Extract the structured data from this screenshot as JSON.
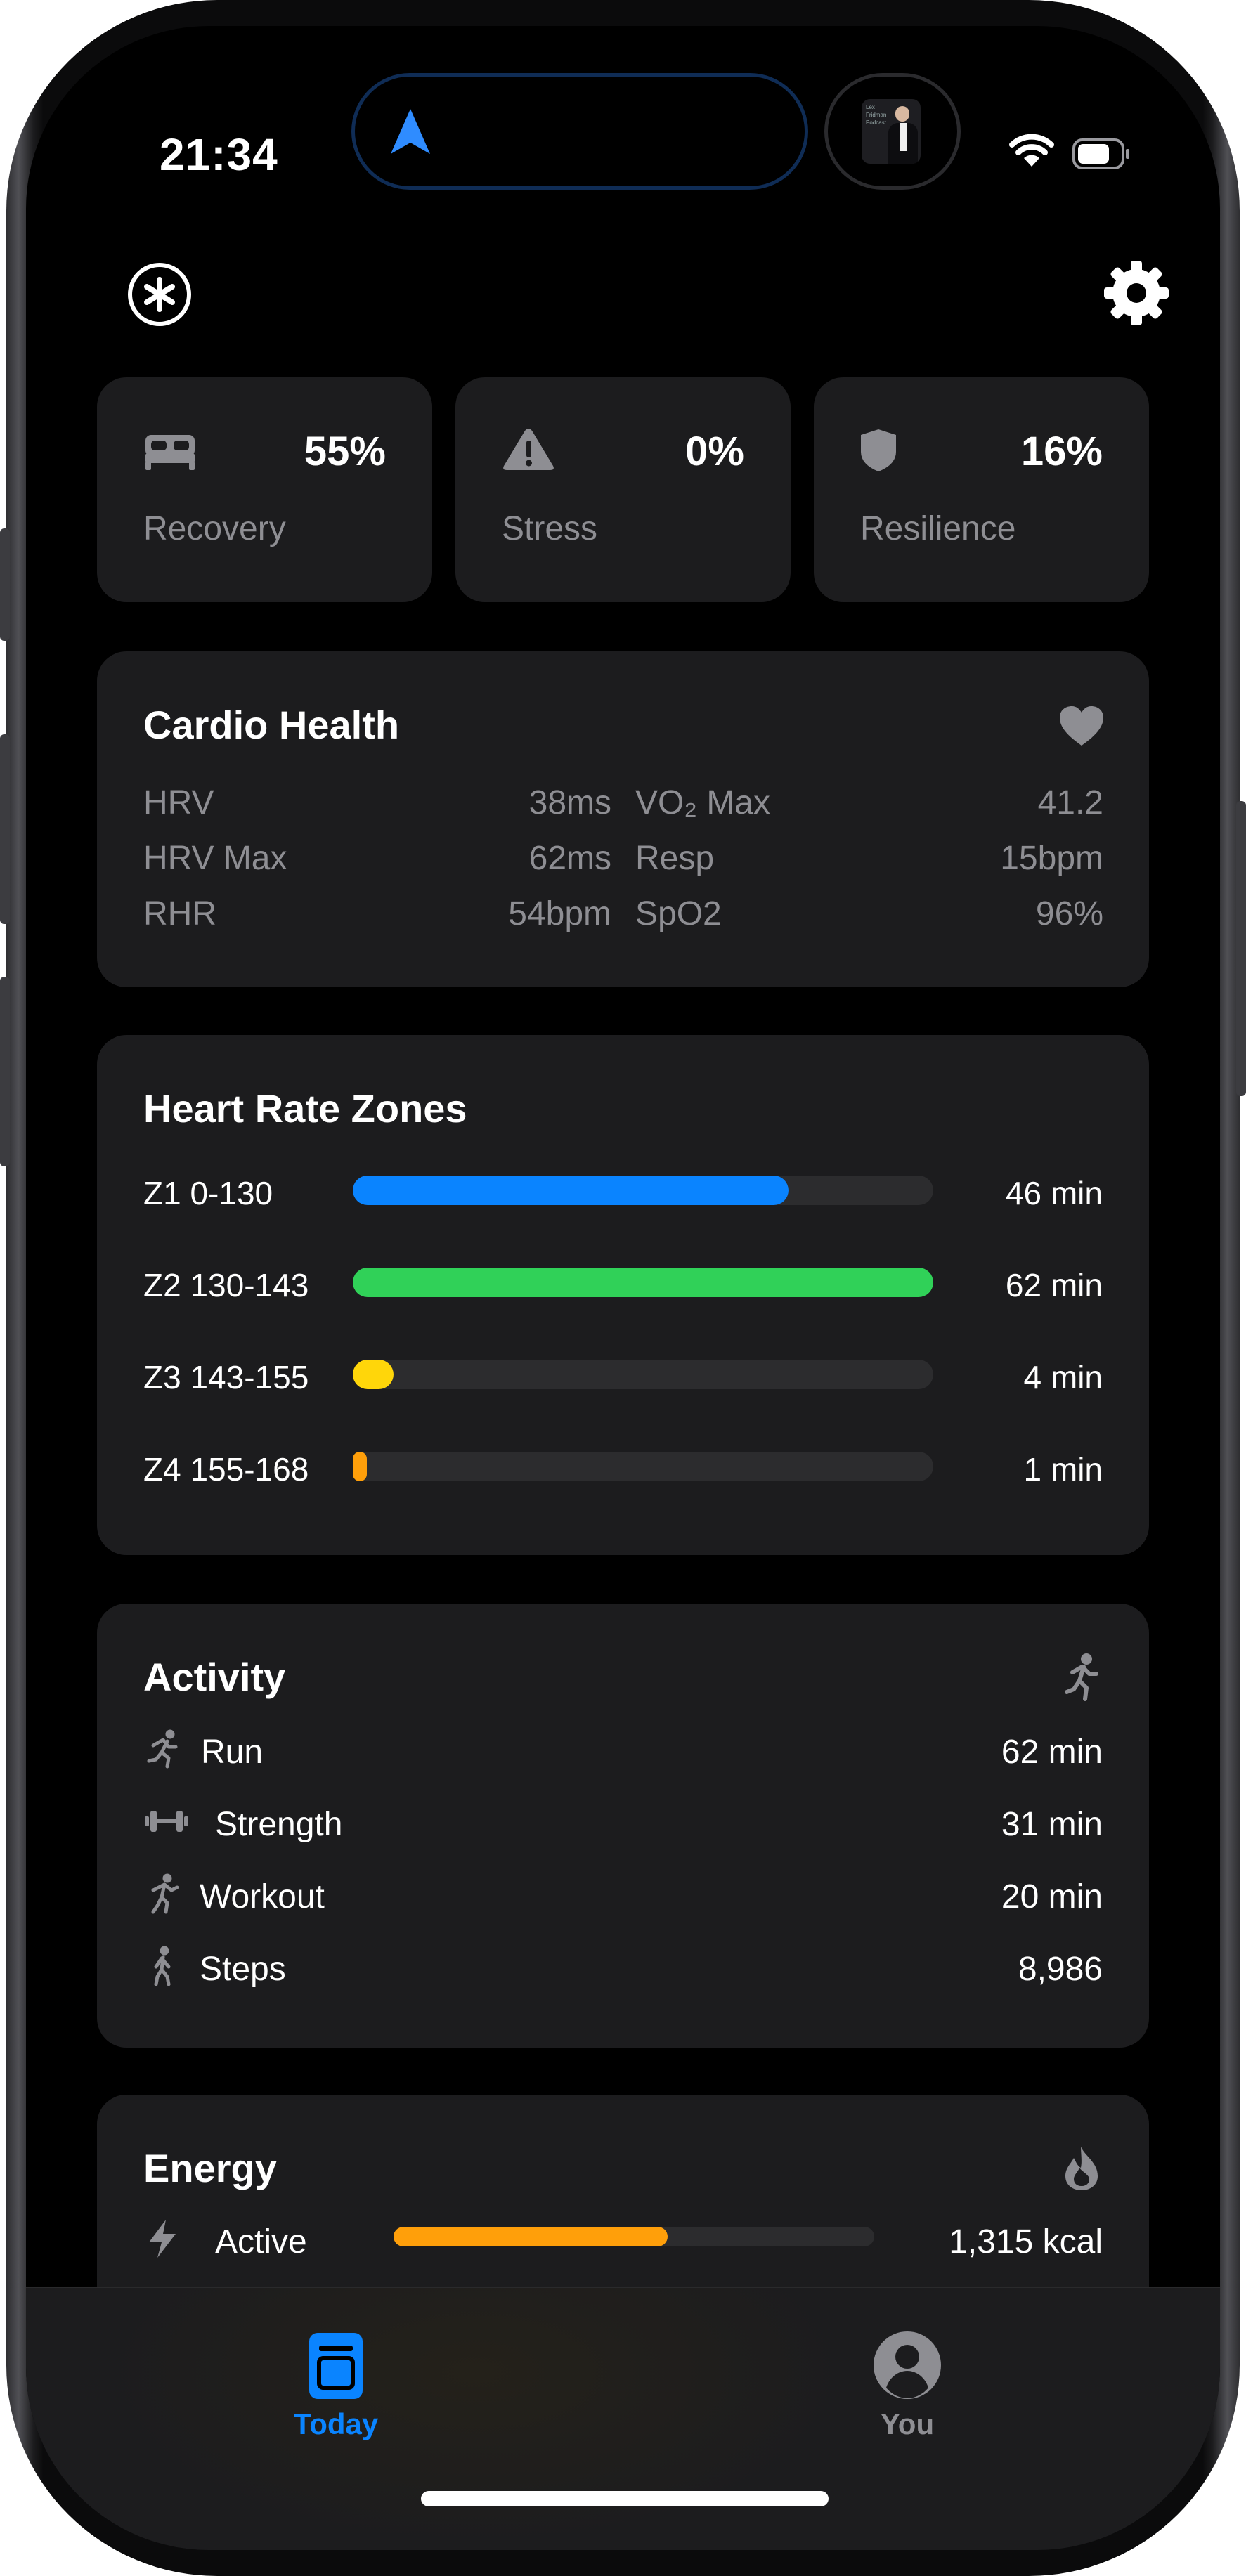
{
  "status_bar": {
    "time": "21:34"
  },
  "now_playing": {
    "art_text": "Lex Fridman Podcast"
  },
  "summary": [
    {
      "icon": "bed-icon",
      "value": "55%",
      "label": "Recovery"
    },
    {
      "icon": "warning-icon",
      "value": "0%",
      "label": "Stress"
    },
    {
      "icon": "shield-icon",
      "value": "16%",
      "label": "Resilience"
    }
  ],
  "cardio": {
    "title": "Cardio Health",
    "icon": "heart-icon",
    "left": [
      {
        "label": "HRV",
        "value": "38ms"
      },
      {
        "label": "HRV Max",
        "value": "62ms"
      },
      {
        "label": "RHR",
        "value": "54bpm"
      }
    ],
    "right": [
      {
        "label": "VO₂ Max",
        "value": "41.2"
      },
      {
        "label": "Resp",
        "value": "15bpm"
      },
      {
        "label": "SpO2",
        "value": "96%"
      }
    ]
  },
  "zones": {
    "title": "Heart Rate Zones",
    "items": [
      {
        "label": "Z1 0-130",
        "value": "46 min",
        "fraction": 0.75,
        "color": "#0a84ff"
      },
      {
        "label": "Z2 130-143",
        "value": "62 min",
        "fraction": 1.0,
        "color": "#30d158"
      },
      {
        "label": "Z3 143-155",
        "value": "4 min",
        "fraction": 0.07,
        "color": "#ffd60a"
      },
      {
        "label": "Z4 155-168",
        "value": "1 min",
        "fraction": 0.02,
        "color": "#ff9f0a"
      }
    ]
  },
  "activity": {
    "title": "Activity",
    "icon": "running-figure-icon",
    "items": [
      {
        "icon": "running-icon",
        "label": "Run",
        "value": "62 min"
      },
      {
        "icon": "dumbbell-icon",
        "label": "Strength",
        "value": "31 min"
      },
      {
        "icon": "workout-icon",
        "label": "Workout",
        "value": "20 min"
      },
      {
        "icon": "walking-icon",
        "label": "Steps",
        "value": "8,986"
      }
    ]
  },
  "energy": {
    "title": "Energy",
    "icon": "flame-icon",
    "items": [
      {
        "icon": "bolt-icon",
        "label": "Active",
        "value": "1,315 kcal",
        "fraction": 0.57,
        "color": "#ff9f0a"
      }
    ]
  },
  "tabs": [
    {
      "label": "Today",
      "icon": "today-icon",
      "active": true,
      "color": "#0a84ff"
    },
    {
      "label": "You",
      "icon": "profile-icon",
      "active": false,
      "color": "#8e8e93"
    }
  ]
}
